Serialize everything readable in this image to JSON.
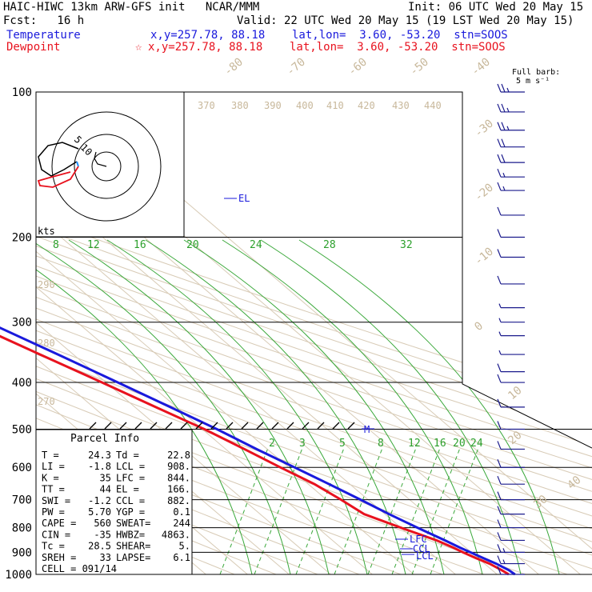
{
  "header": {
    "title": "HAIC-HIWC 13km ARW-GFS init   NCAR/MMM",
    "init": "Init: 06 UTC Wed 20 May 15",
    "fcst": "Fcst:   16 h",
    "valid": "Valid: 22 UTC Wed 20 May 15 (19 LST Wed 20 May 15)",
    "temperature_label": "Temperature",
    "temperature_loc": "x,y=257.78, 88.18    lat,lon=  3.60, -53.20  stn=SOOS",
    "dewpoint_label": "Dewpoint",
    "dewpoint_loc": "x,y=257.78, 88.18    lat,lon=  3.60, -53.20  stn=SOOS",
    "dewpoint_marker": "☆",
    "temperature_color": "#1a1adc",
    "dewpoint_color": "#e8121e"
  },
  "barb_legend": {
    "line1": "Full barb:",
    "line2": "5 m s⁻¹"
  },
  "hodograph": {
    "units": "kts",
    "ring_labels": [
      "5",
      "10"
    ]
  },
  "parcel_info": {
    "title": "Parcel Info",
    "rows": [
      [
        "T  =",
        "24.3",
        "Td =",
        "22.8"
      ],
      [
        "LI =",
        "-1.8",
        "LCL =",
        "908."
      ],
      [
        "K  =",
        "35",
        "LFC =",
        "844."
      ],
      [
        "TT =",
        "44",
        "EL =",
        "166."
      ],
      [
        "SWI =",
        "-1.2",
        "CCL =",
        "882."
      ],
      [
        "PW =",
        "5.70",
        "YGP =",
        "0.1"
      ],
      [
        "CAPE =",
        "560",
        "SWEAT=",
        "244"
      ],
      [
        "CIN =",
        "-35",
        "HWBZ=",
        "4863."
      ],
      [
        "Tc =",
        "28.5",
        "SHEAR=",
        "5."
      ],
      [
        "SREH =",
        "33",
        "LAPSE=",
        "6.1"
      ],
      [
        "CELL = 091/14",
        "",
        "",
        ""
      ]
    ]
  },
  "chart_data": {
    "type": "line",
    "title": "",
    "xlabel": "",
    "ylabel": "",
    "y_scale": "log",
    "pressure_levels": [
      "100",
      "200",
      "300",
      "400",
      "500",
      "600",
      "700",
      "800",
      "900",
      "1000"
    ],
    "isotherm_labels": [
      "-80",
      "-70",
      "-60",
      "-50",
      "-40",
      "-30",
      "-20",
      "-10",
      "0",
      "10",
      "20",
      "30",
      "40"
    ],
    "theta_labels": [
      "370",
      "380",
      "390",
      "400",
      "410",
      "420",
      "430",
      "440",
      "290",
      "280",
      "270"
    ],
    "theta_e_upper_labels": [
      "8",
      "12",
      "16",
      "20",
      "24",
      "28",
      "32"
    ],
    "mixing_ratio_labels": [
      "2",
      "3",
      "5",
      "8",
      "12",
      "16",
      "20",
      "24"
    ],
    "level_markers": [
      "EL",
      "M",
      "LFC",
      "CCL",
      "LCL"
    ],
    "colors": {
      "temperature": "#1a1adc",
      "dewpoint": "#e8121e",
      "moist_adiabat": "#2ca02c",
      "dry_adiabat": "#c8b89b"
    },
    "series": [
      {
        "name": "Temperature",
        "points": [
          [
            1000,
            24.3
          ],
          [
            980,
            24
          ],
          [
            950,
            22.8
          ],
          [
            925,
            21.3
          ],
          [
            900,
            19.8
          ],
          [
            880,
            18.6
          ],
          [
            850,
            17
          ],
          [
            800,
            14
          ],
          [
            750,
            11
          ],
          [
            700,
            8.2
          ],
          [
            650,
            5
          ],
          [
            600,
            1.4
          ],
          [
            550,
            -2.6
          ],
          [
            500,
            -6.5
          ],
          [
            450,
            -11.5
          ],
          [
            400,
            -17.2
          ],
          [
            350,
            -23.7
          ],
          [
            300,
            -31.5
          ],
          [
            250,
            -40.5
          ],
          [
            200,
            -52
          ],
          [
            166,
            -60
          ],
          [
            150,
            -65
          ],
          [
            130,
            -73
          ],
          [
            110,
            -79
          ],
          [
            100,
            -80
          ]
        ]
      },
      {
        "name": "Dewpoint",
        "points": [
          [
            1000,
            22.8
          ],
          [
            980,
            22.3
          ],
          [
            950,
            21.2
          ],
          [
            925,
            19.5
          ],
          [
            900,
            18
          ],
          [
            880,
            17
          ],
          [
            850,
            15
          ],
          [
            800,
            10
          ],
          [
            750,
            5
          ],
          [
            700,
            3.5
          ],
          [
            650,
            1.5
          ],
          [
            600,
            -2
          ],
          [
            550,
            -5.5
          ],
          [
            500,
            -9.5
          ],
          [
            450,
            -15
          ],
          [
            400,
            -21
          ],
          [
            350,
            -28
          ],
          [
            300,
            -36
          ],
          [
            250,
            -46
          ],
          [
            200,
            -60
          ],
          [
            150,
            -75
          ],
          [
            130,
            -86
          ],
          [
            120,
            -86
          ],
          [
            110,
            -82
          ],
          [
            100,
            -80
          ]
        ]
      }
    ],
    "wind_barbs": [
      [
        100,
        25
      ],
      [
        110,
        25
      ],
      [
        120,
        25
      ],
      [
        130,
        20
      ],
      [
        140,
        20
      ],
      [
        150,
        15
      ],
      [
        160,
        15
      ],
      [
        180,
        10
      ],
      [
        200,
        10
      ],
      [
        220,
        10
      ],
      [
        250,
        10
      ],
      [
        280,
        5
      ],
      [
        300,
        5
      ],
      [
        320,
        5
      ],
      [
        350,
        5
      ],
      [
        380,
        10
      ],
      [
        400,
        10
      ],
      [
        450,
        10
      ],
      [
        500,
        10
      ],
      [
        550,
        10
      ],
      [
        600,
        10
      ],
      [
        650,
        10
      ],
      [
        700,
        10
      ],
      [
        750,
        10
      ],
      [
        800,
        10
      ],
      [
        850,
        10
      ],
      [
        900,
        15
      ],
      [
        950,
        15
      ],
      [
        1000,
        10
      ]
    ]
  }
}
